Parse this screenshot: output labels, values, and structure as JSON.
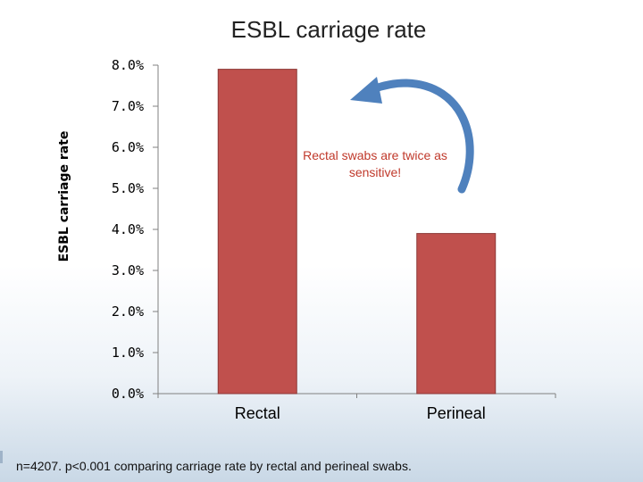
{
  "chart_data": {
    "type": "bar",
    "title": "ESBL carriage rate",
    "ylabel": "ESBL carriage rate",
    "xlabel": "",
    "categories": [
      "Rectal",
      "Perineal"
    ],
    "values": [
      7.9,
      3.9
    ],
    "ylim": [
      0,
      8
    ],
    "yticks": [
      "0.0%",
      "1.0%",
      "2.0%",
      "3.0%",
      "4.0%",
      "5.0%",
      "6.0%",
      "7.0%",
      "8.0%"
    ],
    "bar_color": "#c0504d",
    "grid": false,
    "legend": "none"
  },
  "annotation": "Rectal swabs are twice as sensitive!",
  "annotation_color": "#c0392b",
  "arrow_color": "#4f81bd",
  "footnote": "n=4207. p<0.001 comparing carriage rate by rectal and perineal swabs."
}
